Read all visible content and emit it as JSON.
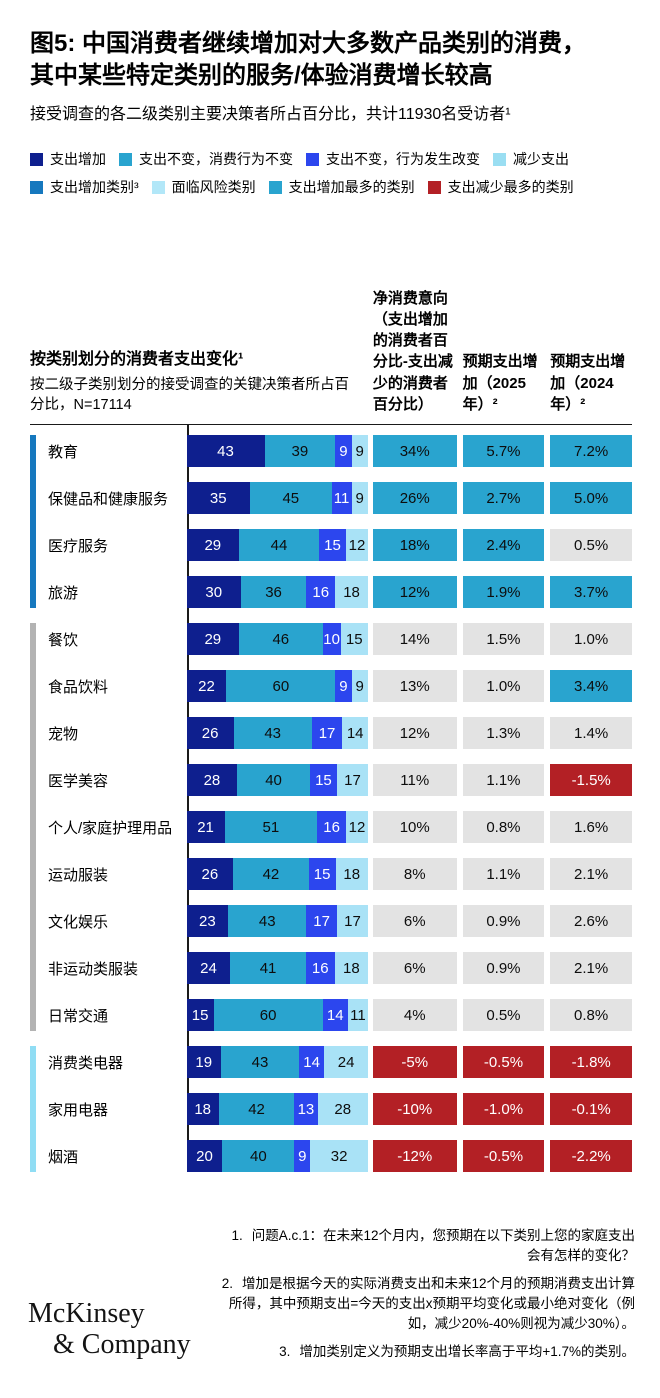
{
  "header": {
    "title_line1": "图5: 中国消费者继续增加对大多数产品类别的消费，",
    "title_line2": "其中某些特定类别的服务/体验消费增长较高",
    "subtitle": "接受调查的各二级类别主要决策者所占百分比，共计11930名受访者¹"
  },
  "legend": {
    "row1": [
      {
        "label": "支出增加",
        "color": "#0e1f8e"
      },
      {
        "label": "支出不变，消费行为不变",
        "color": "#29a4cf"
      },
      {
        "label": "支出不变，行为发生改变",
        "color": "#2c46ee"
      },
      {
        "label": "减少支出",
        "color": "#9adef2"
      }
    ],
    "row2": [
      {
        "label": "支出增加类别³",
        "color": "#1678be"
      },
      {
        "label": "面临风险类别",
        "color": "#b2e7f8"
      },
      {
        "label": "支出增加最多的类别",
        "color": "#29a4cf"
      },
      {
        "label": "支出减少最多的类别",
        "color": "#b32025"
      }
    ]
  },
  "table_head": {
    "left_title": "按类别划分的消费者支出变化¹",
    "left_subtitle": "按二级子类别划分的接受调查的关键决策者所占百分比，N=17114",
    "col1": "净消费意向（支出增加的消费者百分比-支出减少的消费者百分比）",
    "col2": "预期支出增加（2025年）²",
    "col3": "预期支出增加（2024年）²"
  },
  "chart_data": {
    "type": "bar",
    "orientation": "horizontal",
    "stacked": true,
    "unit": "percent of respondents",
    "segment_series": [
      "支出增加",
      "支出不变，消费行为不变",
      "支出不变，行为发生改变",
      "减少支出"
    ],
    "segment_colors": [
      "#0e1f8e",
      "#29a4cf",
      "#2c46ee",
      "#a9e2f6"
    ],
    "segment_text_colors": [
      "#ffffff",
      "#0d0d0d",
      "#ffffff",
      "#0d0d0d"
    ],
    "cell_styles_map": {
      "teal": {
        "bg": "#29a4cf",
        "fg": "#0d0d0d"
      },
      "gray": {
        "bg": "#e3e3e3",
        "fg": "#0d0d0d"
      },
      "red": {
        "bg": "#b32025",
        "fg": "#ffffff"
      }
    },
    "value_columns": [
      "净消费意向",
      "预期支出增加（2025年）",
      "预期支出增加（2024年）"
    ],
    "groups": [
      {
        "indicator_color": "#1678be",
        "rows": [
          {
            "label": "教育",
            "segments": [
              43,
              39,
              9,
              9
            ],
            "cells": [
              {
                "value": "34%",
                "style": "teal"
              },
              {
                "value": "5.7%",
                "style": "teal"
              },
              {
                "value": "7.2%",
                "style": "teal"
              }
            ]
          },
          {
            "label": "保健品和健康服务",
            "segments": [
              35,
              45,
              11,
              9
            ],
            "cells": [
              {
                "value": "26%",
                "style": "teal"
              },
              {
                "value": "2.7%",
                "style": "teal"
              },
              {
                "value": "5.0%",
                "style": "teal"
              }
            ]
          },
          {
            "label": "医疗服务",
            "segments": [
              29,
              44,
              15,
              12
            ],
            "cells": [
              {
                "value": "18%",
                "style": "teal"
              },
              {
                "value": "2.4%",
                "style": "teal"
              },
              {
                "value": "0.5%",
                "style": "gray"
              }
            ]
          },
          {
            "label": "旅游",
            "segments": [
              30,
              36,
              16,
              18
            ],
            "cells": [
              {
                "value": "12%",
                "style": "teal"
              },
              {
                "value": "1.9%",
                "style": "teal"
              },
              {
                "value": "3.7%",
                "style": "teal"
              }
            ]
          }
        ]
      },
      {
        "indicator_color": "#b3b3b3",
        "rows": [
          {
            "label": "餐饮",
            "segments": [
              29,
              46,
              10,
              15
            ],
            "cells": [
              {
                "value": "14%",
                "style": "gray"
              },
              {
                "value": "1.5%",
                "style": "gray"
              },
              {
                "value": "1.0%",
                "style": "gray"
              }
            ]
          },
          {
            "label": "食品饮料",
            "segments": [
              22,
              60,
              9,
              9
            ],
            "cells": [
              {
                "value": "13%",
                "style": "gray"
              },
              {
                "value": "1.0%",
                "style": "gray"
              },
              {
                "value": "3.4%",
                "style": "teal"
              }
            ]
          },
          {
            "label": "宠物",
            "segments": [
              26,
              43,
              17,
              14
            ],
            "cells": [
              {
                "value": "12%",
                "style": "gray"
              },
              {
                "value": "1.3%",
                "style": "gray"
              },
              {
                "value": "1.4%",
                "style": "gray"
              }
            ]
          },
          {
            "label": "医学美容",
            "segments": [
              28,
              40,
              15,
              17
            ],
            "cells": [
              {
                "value": "11%",
                "style": "gray"
              },
              {
                "value": "1.1%",
                "style": "gray"
              },
              {
                "value": "-1.5%",
                "style": "red"
              }
            ]
          },
          {
            "label": "个人/家庭护理用品",
            "segments": [
              21,
              51,
              16,
              12
            ],
            "cells": [
              {
                "value": "10%",
                "style": "gray"
              },
              {
                "value": "0.8%",
                "style": "gray"
              },
              {
                "value": "1.6%",
                "style": "gray"
              }
            ]
          },
          {
            "label": "运动服装",
            "segments": [
              26,
              42,
              15,
              18
            ],
            "cells": [
              {
                "value": "8%",
                "style": "gray"
              },
              {
                "value": "1.1%",
                "style": "gray"
              },
              {
                "value": "2.1%",
                "style": "gray"
              }
            ]
          },
          {
            "label": "文化娱乐",
            "segments": [
              23,
              43,
              17,
              17
            ],
            "cells": [
              {
                "value": "6%",
                "style": "gray"
              },
              {
                "value": "0.9%",
                "style": "gray"
              },
              {
                "value": "2.6%",
                "style": "gray"
              }
            ]
          },
          {
            "label": "非运动类服装",
            "segments": [
              24,
              41,
              16,
              18
            ],
            "cells": [
              {
                "value": "6%",
                "style": "gray"
              },
              {
                "value": "0.9%",
                "style": "gray"
              },
              {
                "value": "2.1%",
                "style": "gray"
              }
            ]
          },
          {
            "label": "日常交通",
            "segments": [
              15,
              60,
              14,
              11
            ],
            "cells": [
              {
                "value": "4%",
                "style": "gray"
              },
              {
                "value": "0.5%",
                "style": "gray"
              },
              {
                "value": "0.8%",
                "style": "gray"
              }
            ]
          }
        ]
      },
      {
        "indicator_color": "#90ddf4",
        "rows": [
          {
            "label": "消费类电器",
            "segments": [
              19,
              43,
              14,
              24
            ],
            "cells": [
              {
                "value": "-5%",
                "style": "red"
              },
              {
                "value": "-0.5%",
                "style": "red"
              },
              {
                "value": "-1.8%",
                "style": "red"
              }
            ]
          },
          {
            "label": "家用电器",
            "segments": [
              18,
              42,
              13,
              28
            ],
            "cells": [
              {
                "value": "-10%",
                "style": "red"
              },
              {
                "value": "-1.0%",
                "style": "red"
              },
              {
                "value": "-0.1%",
                "style": "red"
              }
            ]
          },
          {
            "label": "烟酒",
            "segments": [
              20,
              40,
              9,
              32
            ],
            "cells": [
              {
                "value": "-12%",
                "style": "red"
              },
              {
                "value": "-0.5%",
                "style": "red"
              },
              {
                "value": "-2.2%",
                "style": "red"
              }
            ]
          }
        ]
      }
    ]
  },
  "footnotes": [
    {
      "num": "1.",
      "text": "问题A.c.1：在未来12个月内，您预期在以下类别上您的家庭支出会有怎样的变化？"
    },
    {
      "num": "2.",
      "text": "增加是根据今天的实际消费支出和未来12个月的预期消费支出计算所得，其中预期支出=今天的支出x预期平均变化或最小绝对变化（例如，减少20%-40%则视为减少30%）。"
    },
    {
      "num": "3.",
      "text": "增加类别定义为预期支出增长率高于平均+1.7%的类别。"
    }
  ],
  "logo": {
    "line1": "McKinsey",
    "line2": "& Company"
  }
}
